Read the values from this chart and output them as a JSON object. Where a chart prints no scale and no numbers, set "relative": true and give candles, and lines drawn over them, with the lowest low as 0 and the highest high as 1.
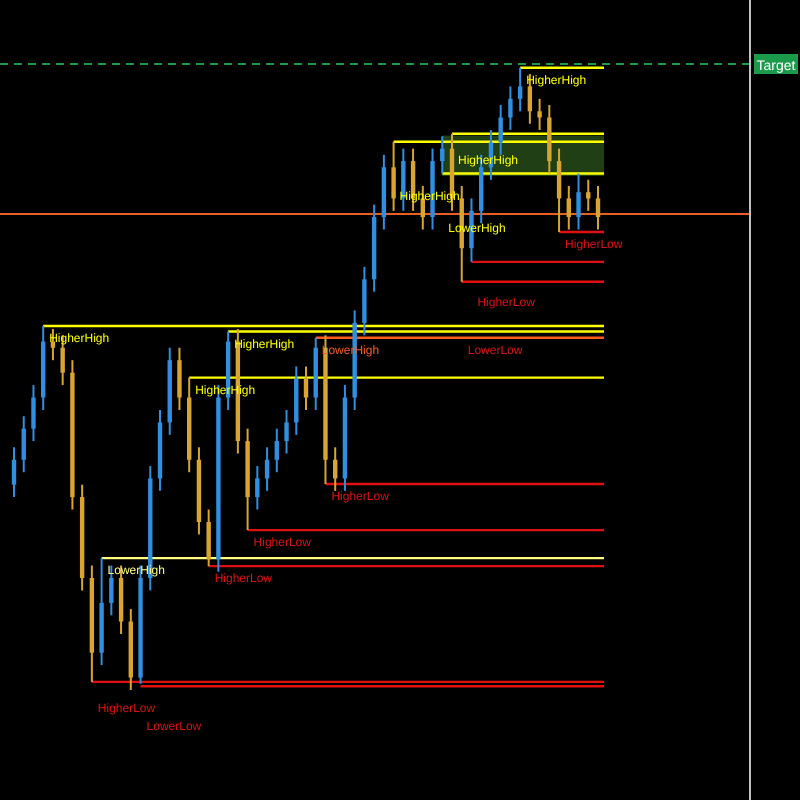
{
  "chart_data": {
    "type": "candlestick",
    "relative": true,
    "categories": [
      null,
      null,
      null,
      null,
      null,
      null,
      null,
      null,
      null,
      null,
      null,
      null,
      null,
      null,
      null,
      null,
      null,
      null,
      null,
      null,
      null,
      null,
      null,
      null,
      null,
      null,
      null,
      null,
      null,
      null,
      null,
      null,
      null,
      null,
      null,
      null,
      null,
      null,
      null,
      null,
      null,
      null,
      null,
      null,
      null,
      null,
      null,
      null,
      null,
      null,
      null,
      null,
      null,
      null,
      null,
      null,
      null,
      null,
      null,
      null,
      null
    ],
    "ohlc": [
      [
        0.33,
        0.39,
        0.31,
        0.37
      ],
      [
        0.37,
        0.44,
        0.35,
        0.42
      ],
      [
        0.42,
        0.49,
        0.4,
        0.47
      ],
      [
        0.47,
        0.585,
        0.45,
        0.56
      ],
      [
        0.56,
        0.58,
        0.53,
        0.55
      ],
      [
        0.55,
        0.57,
        0.49,
        0.51
      ],
      [
        0.51,
        0.53,
        0.29,
        0.31
      ],
      [
        0.31,
        0.33,
        0.16,
        0.18
      ],
      [
        0.18,
        0.2,
        0.013,
        0.06
      ],
      [
        0.06,
        0.212,
        0.04,
        0.14
      ],
      [
        0.14,
        0.2,
        0.12,
        0.18
      ],
      [
        0.18,
        0.2,
        0.09,
        0.11
      ],
      [
        0.11,
        0.13,
        0,
        0.02
      ],
      [
        0.02,
        0.2,
        0.01,
        0.18
      ],
      [
        0.18,
        0.36,
        0.16,
        0.34
      ],
      [
        0.34,
        0.45,
        0.32,
        0.43
      ],
      [
        0.43,
        0.55,
        0.41,
        0.53
      ],
      [
        0.53,
        0.55,
        0.45,
        0.47
      ],
      [
        0.47,
        0.502,
        0.35,
        0.37
      ],
      [
        0.37,
        0.39,
        0.25,
        0.27
      ],
      [
        0.27,
        0.29,
        0.199,
        0.21
      ],
      [
        0.21,
        0.49,
        0.19,
        0.47
      ],
      [
        0.47,
        0.576,
        0.45,
        0.56
      ],
      [
        0.56,
        0.58,
        0.38,
        0.4
      ],
      [
        0.4,
        0.42,
        0.257,
        0.31
      ],
      [
        0.31,
        0.36,
        0.29,
        0.34
      ],
      [
        0.34,
        0.39,
        0.32,
        0.37
      ],
      [
        0.37,
        0.42,
        0.35,
        0.4
      ],
      [
        0.4,
        0.45,
        0.38,
        0.43
      ],
      [
        0.43,
        0.52,
        0.41,
        0.5
      ],
      [
        0.5,
        0.52,
        0.45,
        0.47
      ],
      [
        0.47,
        0.566,
        0.45,
        0.55
      ],
      [
        0.55,
        0.57,
        0.331,
        0.37
      ],
      [
        0.37,
        0.39,
        0.32,
        0.34
      ],
      [
        0.34,
        0.49,
        0.32,
        0.47
      ],
      [
        0.47,
        0.61,
        0.45,
        0.59
      ],
      [
        0.59,
        0.68,
        0.57,
        0.66
      ],
      [
        0.66,
        0.78,
        0.64,
        0.76
      ],
      [
        0.76,
        0.86,
        0.74,
        0.84
      ],
      [
        0.84,
        0.881,
        0.77,
        0.79
      ],
      [
        0.79,
        0.87,
        0.77,
        0.85
      ],
      [
        0.85,
        0.87,
        0.77,
        0.79
      ],
      [
        0.79,
        0.81,
        0.74,
        0.76
      ],
      [
        0.76,
        0.87,
        0.74,
        0.85
      ],
      [
        0.85,
        0.89,
        0.83,
        0.87
      ],
      [
        0.87,
        0.894,
        0.77,
        0.79
      ],
      [
        0.79,
        0.81,
        0.656,
        0.71
      ],
      [
        0.71,
        0.79,
        0.688,
        0.77
      ],
      [
        0.77,
        0.86,
        0.75,
        0.84
      ],
      [
        0.84,
        0.9,
        0.82,
        0.88
      ],
      [
        0.88,
        0.94,
        0.86,
        0.92
      ],
      [
        0.92,
        0.97,
        0.9,
        0.95
      ],
      [
        0.95,
        1,
        0.93,
        0.97
      ],
      [
        0.97,
        0.99,
        0.91,
        0.93
      ],
      [
        0.93,
        0.95,
        0.9,
        0.92
      ],
      [
        0.92,
        0.94,
        0.83,
        0.85
      ],
      [
        0.85,
        0.87,
        0.736,
        0.79
      ],
      [
        0.79,
        0.81,
        0.74,
        0.76
      ],
      [
        0.76,
        0.83,
        0.74,
        0.8
      ],
      [
        0.8,
        0.82,
        0.77,
        0.79
      ],
      [
        0.79,
        0.81,
        0.74,
        0.76
      ]
    ],
    "colors": [
      "#2f8fe0",
      "#2f8fe0",
      "#2f8fe0",
      "#2f8fe0",
      "#d9a530",
      "#d9a530",
      "#d9a530",
      "#d9a530",
      "#d9a530",
      "#2f8fe0",
      "#2f8fe0",
      "#d9a530",
      "#d9a530",
      "#2f8fe0",
      "#2f8fe0",
      "#2f8fe0",
      "#2f8fe0",
      "#d9a530",
      "#d9a530",
      "#d9a530",
      "#d9a530",
      "#2f8fe0",
      "#2f8fe0",
      "#d9a530",
      "#d9a530",
      "#2f8fe0",
      "#2f8fe0",
      "#2f8fe0",
      "#2f8fe0",
      "#2f8fe0",
      "#d9a530",
      "#2f8fe0",
      "#d9a530",
      "#d9a530",
      "#2f8fe0",
      "#2f8fe0",
      "#2f8fe0",
      "#2f8fe0",
      "#2f8fe0",
      "#d9a530",
      "#2f8fe0",
      "#d9a530",
      "#d9a530",
      "#2f8fe0",
      "#2f8fe0",
      "#d9a530",
      "#d9a530",
      "#2f8fe0",
      "#2f8fe0",
      "#2f8fe0",
      "#2f8fe0",
      "#2f8fe0",
      "#2f8fe0",
      "#d9a530",
      "#d9a530",
      "#d9a530",
      "#d9a530",
      "#d9a530",
      "#2f8fe0",
      "#d9a530",
      "#d9a530"
    ],
    "ref_lines": [
      {
        "axis": "y",
        "value": 0.585,
        "label": "HigherHigh",
        "color": "#ffff00"
      },
      {
        "axis": "y",
        "value": 0.576,
        "label": "HigherHigh",
        "color": "#ffff00"
      },
      {
        "axis": "y",
        "value": 0.566,
        "label": "LowerHigh",
        "color": "#ff5a1a"
      },
      {
        "axis": "y",
        "value": 0.502,
        "label": "HigherHigh",
        "color": "#ffff00"
      },
      {
        "axis": "y",
        "value": 0.331,
        "label": "HigherLow",
        "color": "#e01010"
      },
      {
        "axis": "y",
        "value": 0.257,
        "label": "HigherLow",
        "color": "#e01010"
      },
      {
        "axis": "y",
        "value": 0.212,
        "label": "LowerHigh",
        "color": "#ffff80"
      },
      {
        "axis": "y",
        "value": 0.199,
        "label": "HigherLow",
        "color": "#e01010"
      },
      {
        "axis": "y",
        "value": 0.013,
        "label": "HigherLow",
        "color": "#e01010"
      },
      {
        "axis": "y",
        "value": 0.006,
        "label": "LowerLow",
        "color": "#e01010"
      },
      {
        "axis": "y",
        "value": 1.0,
        "label": "HigherHigh",
        "color": "#ffff00"
      },
      {
        "axis": "y",
        "value": 0.894,
        "label": "HigherHigh",
        "color": "#ffff00"
      },
      {
        "axis": "y",
        "value": 0.881,
        "label": "HigherHigh",
        "color": "#ffff00"
      },
      {
        "axis": "y",
        "value": 0.83,
        "label": "LowerHigh",
        "color": "#ffff00"
      },
      {
        "axis": "y",
        "value": 0.736,
        "label": "HigherLow",
        "color": "#e01010"
      },
      {
        "axis": "y",
        "value": 0.688,
        "label": "HigherLow",
        "color": "#e01010"
      },
      {
        "axis": "y",
        "value": 0.656,
        "label": "LowerLow",
        "color": "#e01010"
      },
      {
        "axis": "y",
        "value": 1.006,
        "label": "Target",
        "color": "#1a9a4a",
        "line_style": "dashed"
      },
      {
        "axis": "y",
        "value": 0.765,
        "label": null,
        "color": "#e86020",
        "line_style": "solid"
      }
    ],
    "bands": [
      {
        "axis": "y",
        "from": 0.826,
        "to": 0.891,
        "label": null,
        "color": "#2e5a1e"
      }
    ]
  }
}
